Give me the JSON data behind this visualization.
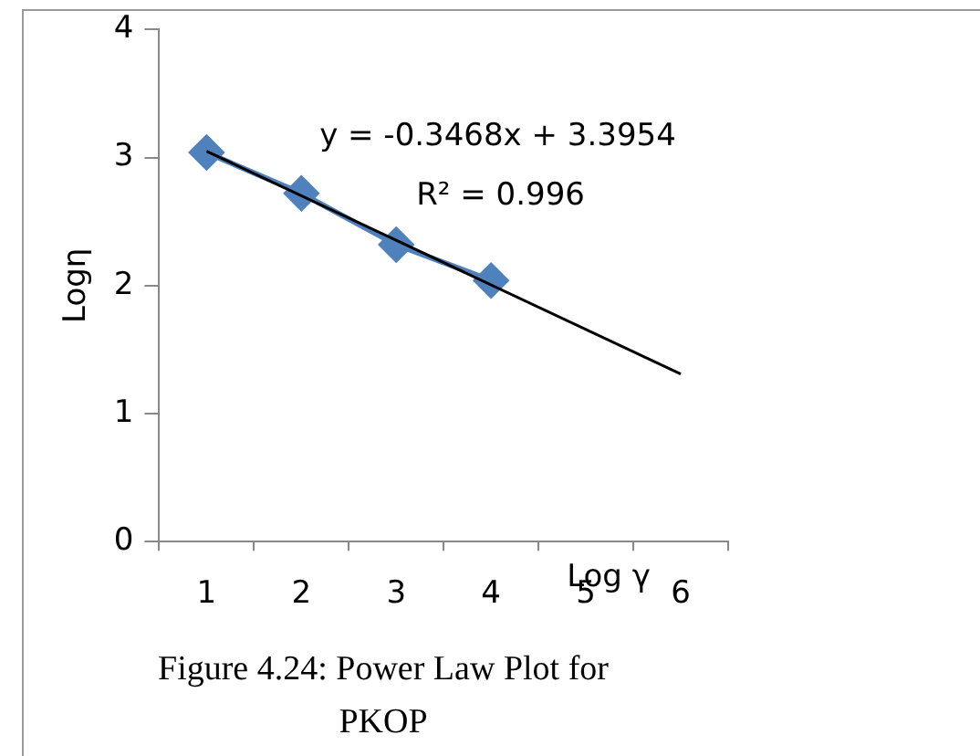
{
  "chart_data": {
    "type": "line",
    "xlabel": "Log γ",
    "ylabel": "Logη",
    "categories": [
      "1",
      "2",
      "3",
      "4",
      "5",
      "6"
    ],
    "series": [
      {
        "color": "#4f81bd",
        "values": [
          3.04,
          2.72,
          2.32,
          2.04,
          null,
          null
        ]
      },
      {
        "x": [
          "1",
          "6"
        ],
        "values": [
          3.05,
          1.31
        ],
        "color": "#000000",
        "marker": "none"
      }
    ],
    "ylim": [
      0,
      4
    ],
    "yticks": [
      0,
      1,
      2,
      3,
      4
    ],
    "grid": false,
    "legend": false,
    "marker": "diamond",
    "line_style": "solid",
    "annotations": [
      "y = -0.3468x + 3.3954",
      "R² = 0.996",
      "Figure 4.24: Power Law Plot for PKOP"
    ]
  }
}
